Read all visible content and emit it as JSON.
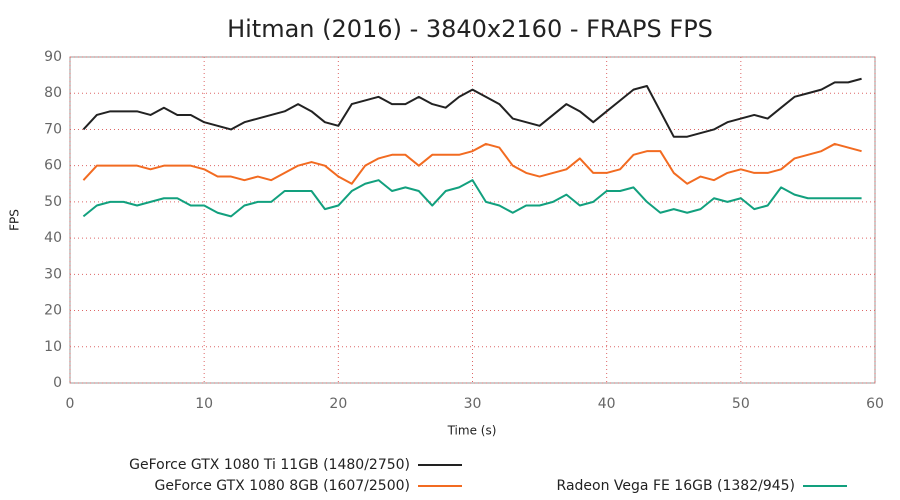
{
  "chart_data": {
    "type": "line",
    "title": "Hitman (2016) - 3840x2160 - FRAPS FPS",
    "x_label": "Time (s)",
    "y_label": "FPS",
    "x": [
      1,
      2,
      3,
      4,
      5,
      6,
      7,
      8,
      9,
      10,
      11,
      12,
      13,
      14,
      15,
      16,
      17,
      18,
      19,
      20,
      21,
      22,
      23,
      24,
      25,
      26,
      27,
      28,
      29,
      30,
      31,
      32,
      33,
      34,
      35,
      36,
      37,
      38,
      39,
      40,
      41,
      42,
      43,
      44,
      45,
      46,
      47,
      48,
      49,
      50,
      51,
      52,
      53,
      54,
      55,
      56,
      57,
      58,
      59
    ],
    "series": [
      {
        "name": "GeForce GTX 1080 Ti 11GB (1480/2750)",
        "color": "#222222",
        "values": [
          70,
          74,
          75,
          75,
          75,
          74,
          76,
          74,
          74,
          72,
          71,
          70,
          72,
          73,
          74,
          75,
          77,
          75,
          72,
          71,
          77,
          78,
          79,
          77,
          77,
          79,
          77,
          76,
          79,
          81,
          79,
          77,
          73,
          72,
          71,
          74,
          77,
          75,
          72,
          75,
          78,
          81,
          82,
          75,
          68,
          68,
          69,
          70,
          72,
          73,
          74,
          73,
          76,
          79,
          80,
          81,
          83,
          83,
          84
        ]
      },
      {
        "name": "GeForce GTX 1080 8GB (1607/2500)",
        "color": "#f26b21",
        "values": [
          56,
          60,
          60,
          60,
          60,
          59,
          60,
          60,
          60,
          59,
          57,
          57,
          56,
          57,
          56,
          58,
          60,
          61,
          60,
          57,
          55,
          60,
          62,
          63,
          63,
          60,
          63,
          63,
          63,
          64,
          66,
          65,
          60,
          58,
          57,
          58,
          59,
          62,
          58,
          58,
          59,
          63,
          64,
          64,
          58,
          55,
          57,
          56,
          58,
          59,
          58,
          58,
          59,
          62,
          63,
          64,
          66,
          65,
          64
        ]
      },
      {
        "name": "Radeon Vega FE 16GB (1382/945)",
        "color": "#12a07e",
        "values": [
          46,
          49,
          50,
          50,
          49,
          50,
          51,
          51,
          49,
          49,
          47,
          46,
          49,
          50,
          50,
          53,
          53,
          53,
          48,
          49,
          53,
          55,
          56,
          53,
          54,
          53,
          49,
          53,
          54,
          56,
          50,
          49,
          47,
          49,
          49,
          50,
          52,
          49,
          50,
          53,
          53,
          54,
          50,
          47,
          48,
          47,
          48,
          51,
          50,
          51,
          48,
          49,
          54,
          52,
          51,
          51,
          51,
          51,
          51
        ]
      }
    ],
    "xlim": [
      0,
      60
    ],
    "xticks": [
      0,
      10,
      20,
      30,
      40,
      50,
      60
    ],
    "ylim": [
      0,
      90
    ],
    "yticks": [
      0,
      10,
      20,
      30,
      40,
      50,
      60,
      70,
      80,
      90
    ],
    "grid": true,
    "legend": "bottom"
  }
}
